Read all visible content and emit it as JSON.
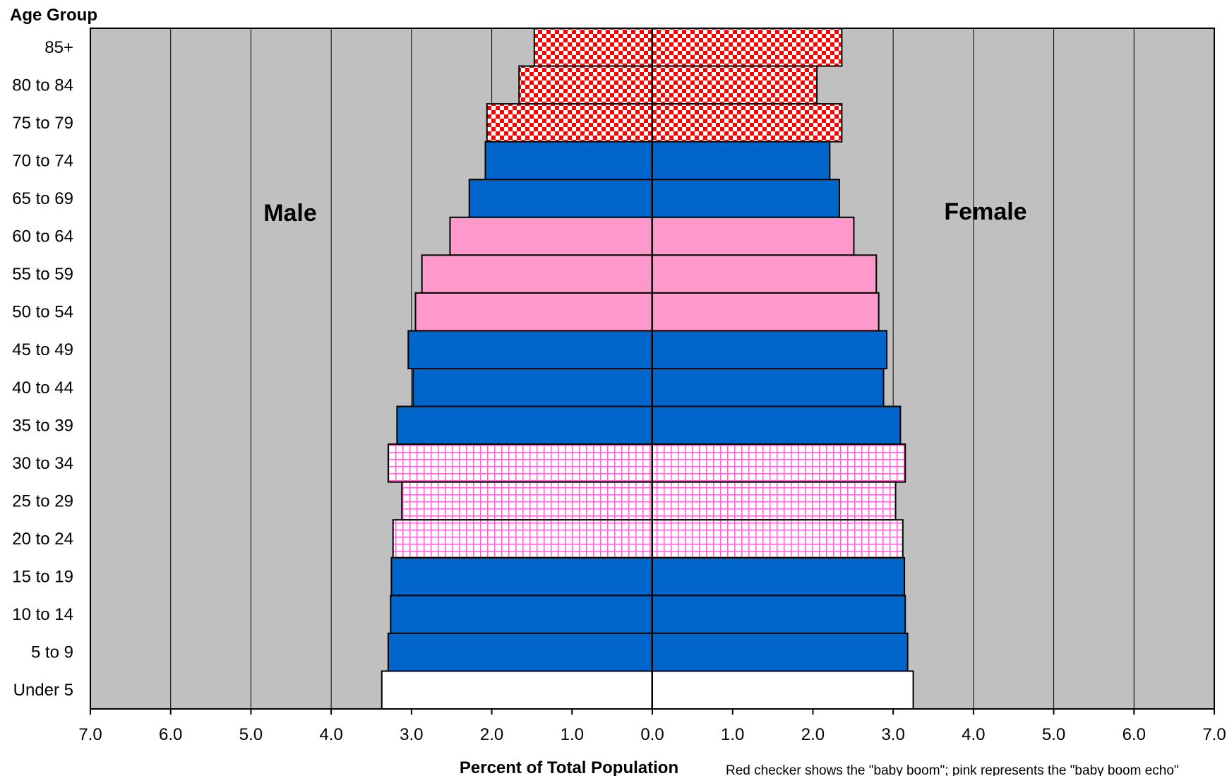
{
  "chart_data": {
    "type": "bar",
    "orientation": "horizontal",
    "subtype": "population-pyramid",
    "ylabel": "Age Group",
    "xlabel": "Percent of Total Population",
    "xlim": [
      -7,
      7
    ],
    "x_tick_labels": [
      "7.0",
      "6.0",
      "5.0",
      "4.0",
      "3.0",
      "2.0",
      "1.0",
      "0.0",
      "1.0",
      "2.0",
      "3.0",
      "4.0",
      "5.0",
      "6.0",
      "7.0"
    ],
    "grid": true,
    "side_labels": {
      "left": "Male",
      "right": "Female"
    },
    "note": "Red checker shows the \"baby boom\"; pink represents the \"baby boom echo\"",
    "categories": [
      "85+",
      "80 to 84",
      "75 to 79",
      "70 to 74",
      "65 to 69",
      "60 to 64",
      "55 to 59",
      "50 to 54",
      "45 to 49",
      "40 to 44",
      "35 to 39",
      "30 to 34",
      "25 to 29",
      "20 to 24",
      "15 to 19",
      "10 to 14",
      "5 to 9",
      "Under 5"
    ],
    "series": [
      {
        "name": "Male",
        "values": [
          1.47,
          1.66,
          2.06,
          2.08,
          2.28,
          2.52,
          2.87,
          2.95,
          3.04,
          2.98,
          3.18,
          3.29,
          3.12,
          3.23,
          3.25,
          3.26,
          3.29,
          3.37
        ]
      },
      {
        "name": "Female",
        "values": [
          2.36,
          2.05,
          2.36,
          2.21,
          2.33,
          2.51,
          2.79,
          2.82,
          2.92,
          2.88,
          3.09,
          3.15,
          3.03,
          3.12,
          3.14,
          3.15,
          3.18,
          3.25
        ]
      }
    ],
    "bar_styles": [
      "checker-red",
      "checker-red",
      "checker-red",
      "blue",
      "blue",
      "pink",
      "pink",
      "pink",
      "blue",
      "blue",
      "blue",
      "pink-grid",
      "pink-grid",
      "pink-grid",
      "blue",
      "blue",
      "blue",
      "white"
    ],
    "colors": {
      "plot_background": "#c0c0c0",
      "blue": "#0066cc",
      "pink": "#ff99cc",
      "checker_red": "#ff0000",
      "grid_line_pink": "#ff66cc",
      "outline": "#000000"
    }
  }
}
